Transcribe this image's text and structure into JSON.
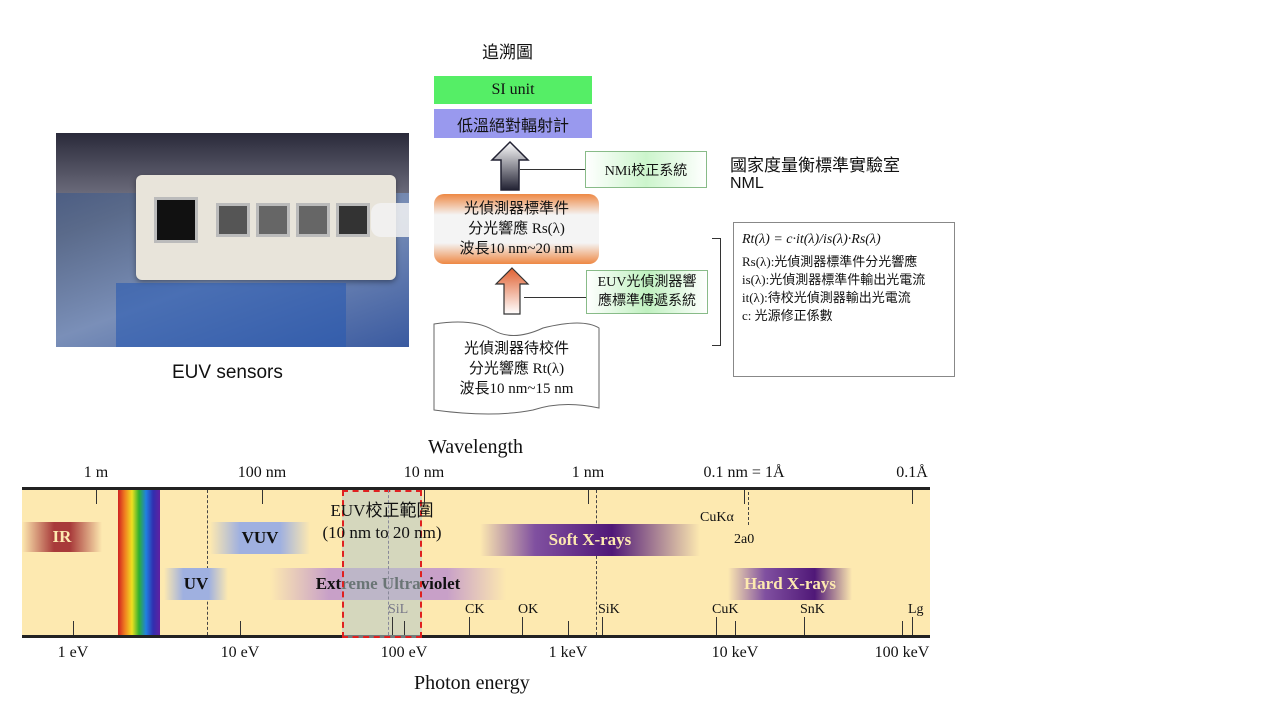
{
  "photo": {
    "caption": "EUV sensors"
  },
  "traceability": {
    "title": "追溯圖",
    "si_unit": "SI unit",
    "radiometer": "低溫絕對輻射計",
    "nmi_system": "NMi校正系統",
    "lab_name": "國家度量衡標準實驗室",
    "lab_abbr": "NML",
    "standard": {
      "line1": "光偵測器標準件",
      "line2": "分光響應 Rs(λ)",
      "line3": "波長10 nm~20 nm"
    },
    "transfer_system": {
      "line1": "EUV光偵測器響",
      "line2": "應標準傳遞系統"
    },
    "dut": {
      "line1": "光偵測器待校件",
      "line2": "分光響應 Rt(λ)",
      "line3": "波長10 nm~15 nm"
    },
    "formula": {
      "equation": "Rt(λ) = c·it(λ)/is(λ)·Rs(λ)",
      "def1": "Rs(λ):光偵測器標準件分光響應",
      "def2": "is(λ):光偵測器標準件輸出光電流",
      "def3": "it(λ):待校光偵測器輸出光電流",
      "def4": "c: 光源修正係數"
    }
  },
  "spectrum": {
    "top_axis_title": "Wavelength",
    "bottom_axis_title": "Photon energy",
    "top_ticks": [
      "1 m",
      "100 nm",
      "10 nm",
      "1 nm",
      "0.1 nm = 1Å",
      "0.1Å"
    ],
    "bottom_ticks": [
      "1 eV",
      "10 eV",
      "100 eV",
      "1 keV",
      "10 keV",
      "100 keV"
    ],
    "bands": [
      "IR",
      "VUV",
      "UV",
      "Extreme Ultraviolet",
      "Soft X-rays",
      "Hard X-rays"
    ],
    "euv_range": {
      "line1": "EUV校正範圍",
      "line2": "(10 nm to 20 nm)"
    },
    "edges": [
      "SiL",
      "CK",
      "OK",
      "SiK",
      "CuK",
      "SnK",
      "Lg"
    ],
    "cu_k_alpha": "CuKα",
    "two_a0": "2a0",
    "colors": {
      "background": "#fde9b0",
      "ir": "#a83a3a",
      "vuv": "#8aa0d8",
      "uv": "#8aa0d8",
      "euv": "#b080b0",
      "soft_xray": "#5a1a80",
      "hard_xray": "#5a1a80",
      "euv_range_border": "#e02020"
    }
  }
}
